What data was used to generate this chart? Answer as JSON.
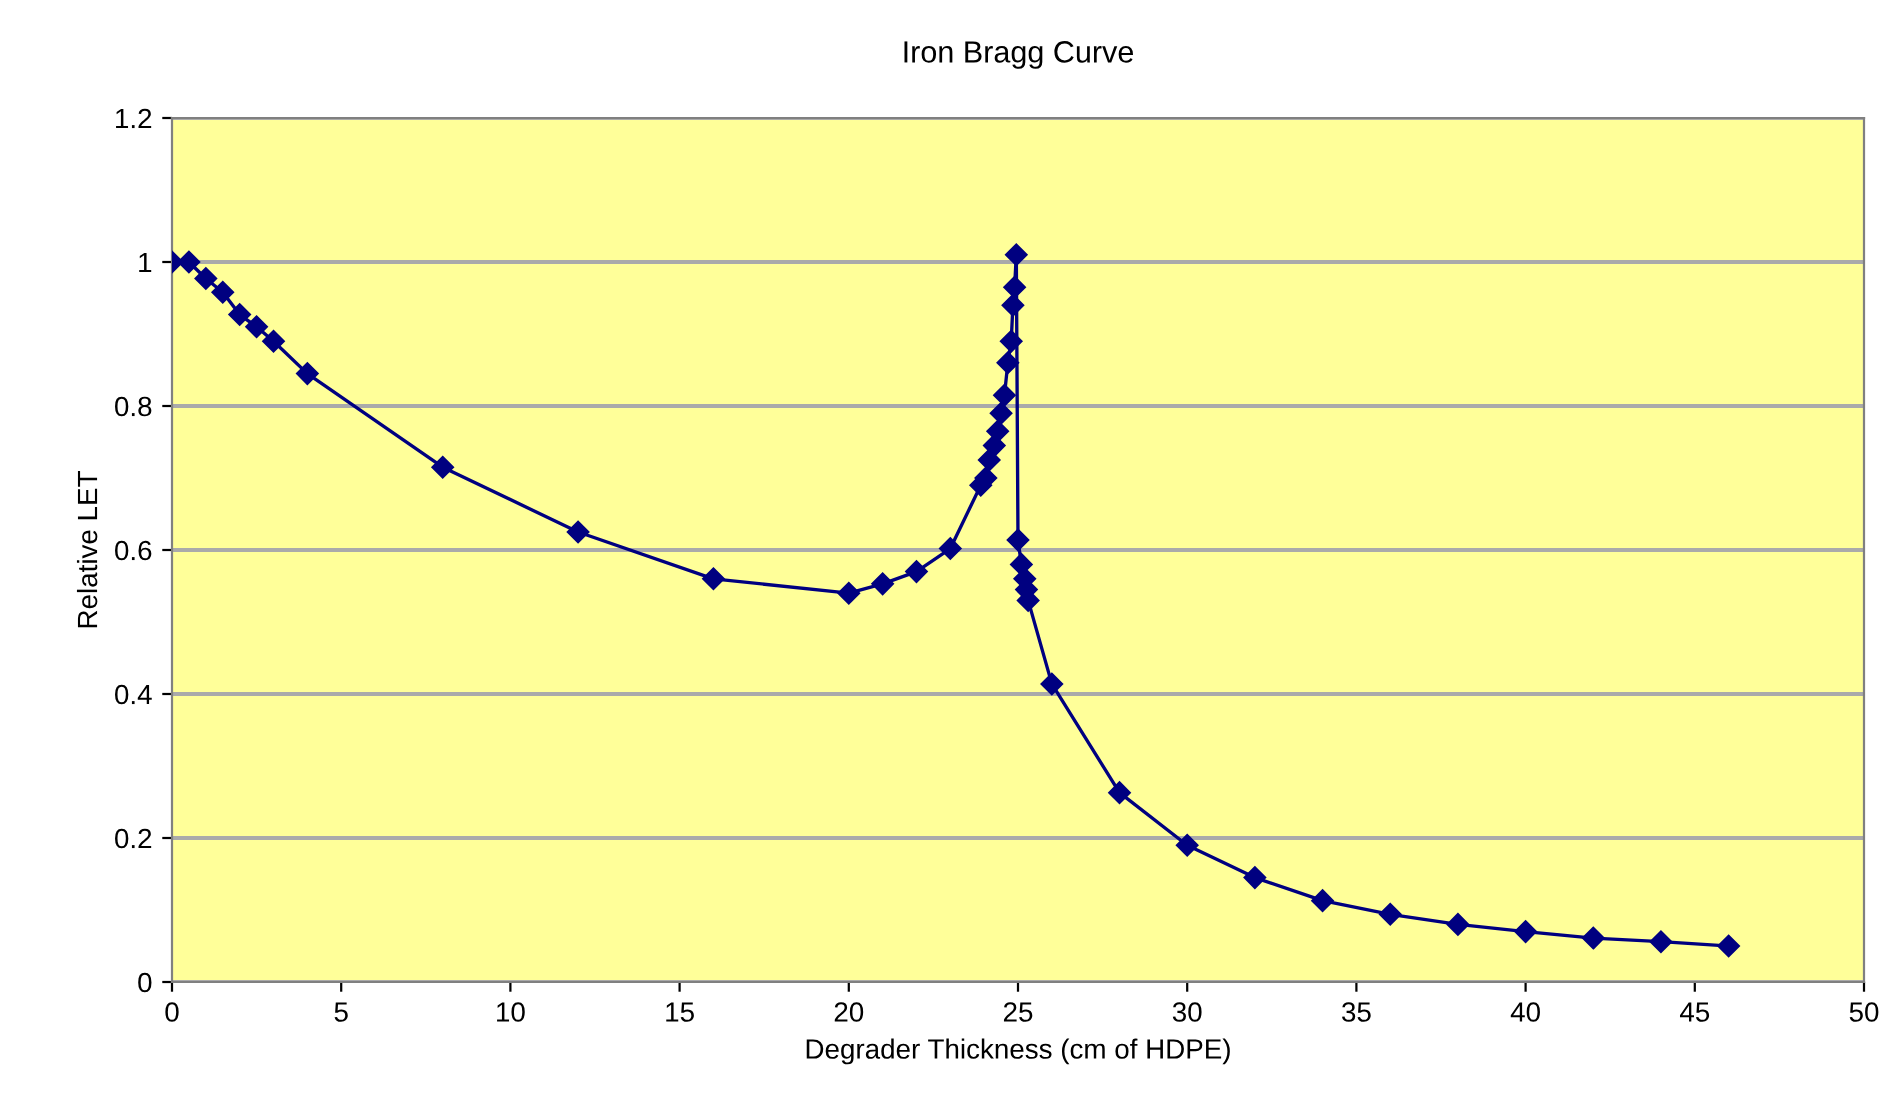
{
  "chart_data": {
    "type": "line",
    "title": "Iron Bragg Curve",
    "xlabel": "Degrader Thickness (cm of HDPE)",
    "ylabel": "Relative LET",
    "xlim": [
      0,
      50
    ],
    "xticks": [
      0,
      5,
      10,
      15,
      20,
      25,
      30,
      35,
      40,
      45,
      50
    ],
    "ylim": [
      0,
      1.2
    ],
    "yticks": [
      0,
      0.2,
      0.4,
      0.6,
      0.8,
      1,
      1.2
    ],
    "grid": "y",
    "marker": "diamond",
    "line_style": "solid",
    "series": [
      {
        "color": "#000080",
        "x": [
          0,
          0.5,
          1,
          1.5,
          2,
          2.5,
          3,
          4,
          8,
          12,
          16,
          20,
          21,
          22,
          23,
          23.9,
          24.05,
          24.15,
          24.3,
          24.4,
          24.5,
          24.6,
          24.7,
          24.8,
          24.85,
          24.9,
          24.95,
          25.0,
          25.1,
          25.2,
          25.25,
          25.3,
          26,
          28,
          30,
          32,
          34,
          36,
          38,
          40,
          42,
          44,
          46
        ],
        "values": [
          1.0,
          1.0,
          0.977,
          0.958,
          0.927,
          0.91,
          0.89,
          0.845,
          0.715,
          0.625,
          0.56,
          0.54,
          0.553,
          0.57,
          0.602,
          0.69,
          0.7,
          0.725,
          0.745,
          0.765,
          0.79,
          0.815,
          0.86,
          0.89,
          0.94,
          0.965,
          1.01,
          0.614,
          0.58,
          0.56,
          0.545,
          0.53,
          0.414,
          0.263,
          0.19,
          0.145,
          0.113,
          0.094,
          0.08,
          0.07,
          0.061,
          0.056,
          0.05
        ]
      }
    ]
  }
}
